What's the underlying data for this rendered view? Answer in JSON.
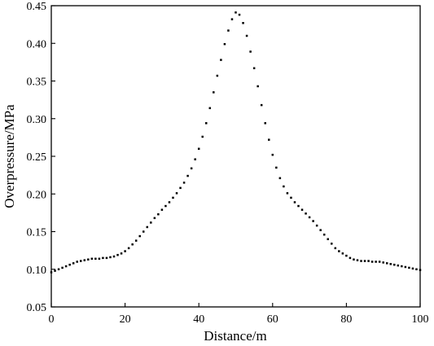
{
  "chart_data": {
    "type": "scatter",
    "title": "",
    "xlabel": "Distance/m",
    "ylabel": "Overpressure/MPa",
    "xlim": [
      0,
      100
    ],
    "ylim": [
      0.05,
      0.45
    ],
    "x_ticks": [
      0,
      20,
      40,
      60,
      80,
      100
    ],
    "y_ticks": [
      0.05,
      0.1,
      0.15,
      0.2,
      0.25,
      0.3,
      0.35,
      0.4,
      0.45
    ],
    "x_tick_labels": [
      "0",
      "20",
      "40",
      "60",
      "80",
      "100"
    ],
    "y_tick_labels": [
      "0.05",
      "0.10",
      "0.15",
      "0.20",
      "0.25",
      "0.30",
      "0.35",
      "0.40",
      "0.45"
    ],
    "grid": false,
    "legend": "none",
    "marker_color": "#000000",
    "series": [
      {
        "points": [
          [
            0.0,
            0.096
          ],
          [
            1.0,
            0.098
          ],
          [
            2.0,
            0.1
          ],
          [
            3.0,
            0.102
          ],
          [
            4.0,
            0.104
          ],
          [
            5.0,
            0.106
          ],
          [
            6.0,
            0.108
          ],
          [
            7.0,
            0.11
          ],
          [
            8.0,
            0.111
          ],
          [
            9.0,
            0.112
          ],
          [
            10.0,
            0.113
          ],
          [
            11.0,
            0.114
          ],
          [
            12.0,
            0.114
          ],
          [
            13.0,
            0.114
          ],
          [
            14.0,
            0.115
          ],
          [
            15.0,
            0.115
          ],
          [
            16.0,
            0.116
          ],
          [
            17.0,
            0.117
          ],
          [
            18.0,
            0.119
          ],
          [
            19.0,
            0.121
          ],
          [
            20.0,
            0.124
          ],
          [
            21.0,
            0.128
          ],
          [
            22.0,
            0.133
          ],
          [
            23.0,
            0.138
          ],
          [
            24.0,
            0.144
          ],
          [
            25.0,
            0.15
          ],
          [
            26.0,
            0.156
          ],
          [
            27.0,
            0.162
          ],
          [
            28.0,
            0.168
          ],
          [
            29.0,
            0.173
          ],
          [
            30.0,
            0.179
          ],
          [
            31.0,
            0.184
          ],
          [
            32.0,
            0.189
          ],
          [
            33.0,
            0.195
          ],
          [
            34.0,
            0.201
          ],
          [
            35.0,
            0.208
          ],
          [
            36.0,
            0.215
          ],
          [
            37.0,
            0.224
          ],
          [
            38.0,
            0.234
          ],
          [
            39.0,
            0.246
          ],
          [
            40.0,
            0.26
          ],
          [
            41.0,
            0.276
          ],
          [
            42.0,
            0.294
          ],
          [
            43.0,
            0.314
          ],
          [
            44.0,
            0.335
          ],
          [
            45.0,
            0.357
          ],
          [
            46.0,
            0.378
          ],
          [
            47.0,
            0.399
          ],
          [
            48.0,
            0.417
          ],
          [
            49.0,
            0.432
          ],
          [
            50.0,
            0.441
          ],
          [
            51.0,
            0.438
          ],
          [
            52.0,
            0.427
          ],
          [
            53.0,
            0.41
          ],
          [
            54.0,
            0.389
          ],
          [
            55.0,
            0.367
          ],
          [
            56.0,
            0.343
          ],
          [
            57.0,
            0.318
          ],
          [
            58.0,
            0.294
          ],
          [
            59.0,
            0.272
          ],
          [
            60.0,
            0.252
          ],
          [
            61.0,
            0.235
          ],
          [
            62.0,
            0.221
          ],
          [
            63.0,
            0.21
          ],
          [
            64.0,
            0.201
          ],
          [
            65.0,
            0.195
          ],
          [
            66.0,
            0.189
          ],
          [
            67.0,
            0.184
          ],
          [
            68.0,
            0.179
          ],
          [
            69.0,
            0.174
          ],
          [
            70.0,
            0.169
          ],
          [
            71.0,
            0.164
          ],
          [
            72.0,
            0.158
          ],
          [
            73.0,
            0.152
          ],
          [
            74.0,
            0.146
          ],
          [
            75.0,
            0.14
          ],
          [
            76.0,
            0.134
          ],
          [
            77.0,
            0.128
          ],
          [
            78.0,
            0.124
          ],
          [
            79.0,
            0.121
          ],
          [
            80.0,
            0.118
          ],
          [
            81.0,
            0.115
          ],
          [
            82.0,
            0.113
          ],
          [
            83.0,
            0.112
          ],
          [
            84.0,
            0.111
          ],
          [
            85.0,
            0.111
          ],
          [
            86.0,
            0.111
          ],
          [
            87.0,
            0.11
          ],
          [
            88.0,
            0.11
          ],
          [
            89.0,
            0.11
          ],
          [
            90.0,
            0.109
          ],
          [
            91.0,
            0.108
          ],
          [
            92.0,
            0.107
          ],
          [
            93.0,
            0.106
          ],
          [
            94.0,
            0.105
          ],
          [
            95.0,
            0.104
          ],
          [
            96.0,
            0.103
          ],
          [
            97.0,
            0.102
          ],
          [
            98.0,
            0.101
          ],
          [
            99.0,
            0.1
          ],
          [
            100.0,
            0.099
          ]
        ]
      }
    ]
  }
}
